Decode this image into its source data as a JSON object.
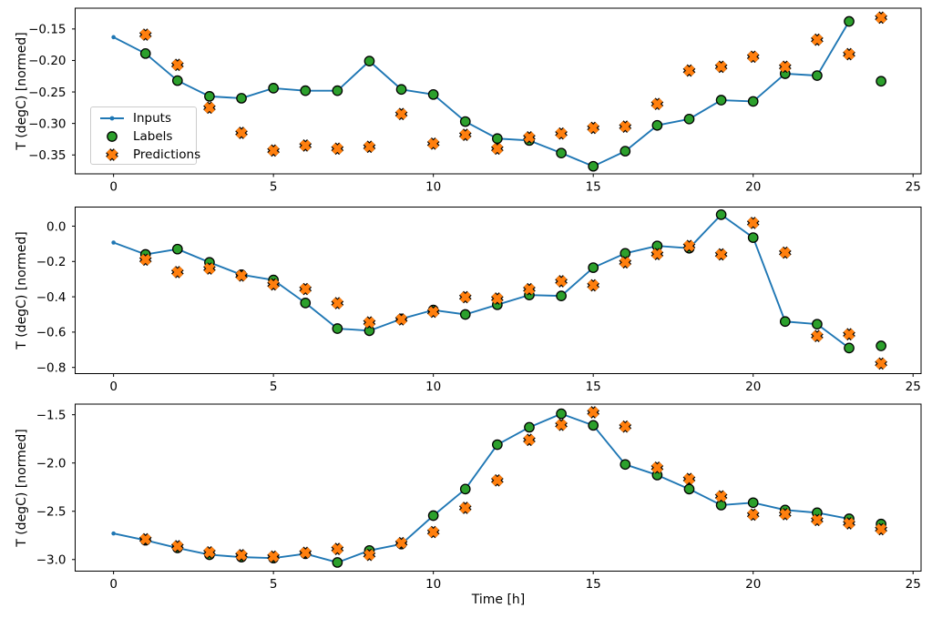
{
  "figure": {
    "background": "#ffffff"
  },
  "colors": {
    "inputs_line": "#1f77b4",
    "labels_marker": "#2ca02c",
    "predictions_marker": "#ff7f0e",
    "marker_edge": "#000000",
    "axes_edge": "#000000",
    "text": "#000000",
    "legend_border": "#cccccc"
  },
  "legend": {
    "items": [
      {
        "label": "Inputs",
        "icon": "line-with-dot-icon"
      },
      {
        "label": "Labels",
        "icon": "green-circle-icon"
      },
      {
        "label": "Predictions",
        "icon": "orange-x-icon"
      }
    ]
  },
  "chart_data": [
    {
      "type": "line",
      "title": "",
      "xlabel": "",
      "ylabel": "T (degC) [normed]",
      "grid": false,
      "legend_position": "upper-left-inset",
      "xlim": [
        -1.2,
        25.25
      ],
      "ylim": [
        -0.38,
        -0.117
      ],
      "xticks": {
        "values": [
          0,
          5,
          10,
          15,
          20,
          25
        ],
        "labels": [
          "0",
          "5",
          "10",
          "15",
          "20",
          "25"
        ]
      },
      "yticks": {
        "values": [
          -0.15,
          -0.2,
          -0.25,
          -0.3,
          -0.35
        ],
        "labels": [
          "−0.15",
          "−0.20",
          "−0.25",
          "−0.30",
          "−0.35"
        ]
      },
      "series": [
        {
          "name": "Inputs",
          "marker": "dot-line",
          "x": [
            0,
            1,
            2,
            3,
            4,
            5,
            6,
            7,
            8,
            9,
            10,
            11,
            12,
            13,
            14,
            15,
            16,
            17,
            18,
            19,
            20,
            21,
            22,
            23
          ],
          "values": [
            -0.163,
            -0.189,
            -0.232,
            -0.257,
            -0.26,
            -0.244,
            -0.248,
            -0.248,
            -0.201,
            -0.246,
            -0.254,
            -0.297,
            -0.324,
            -0.327,
            -0.347,
            -0.368,
            -0.344,
            -0.303,
            -0.293,
            -0.263,
            -0.265,
            -0.221,
            -0.224,
            -0.138
          ]
        },
        {
          "name": "Labels",
          "marker": "circle",
          "x": [
            1,
            2,
            3,
            4,
            5,
            6,
            7,
            8,
            9,
            10,
            11,
            12,
            13,
            14,
            15,
            16,
            17,
            18,
            19,
            20,
            21,
            22,
            23,
            24
          ],
          "values": [
            -0.189,
            -0.232,
            -0.257,
            -0.26,
            -0.244,
            -0.248,
            -0.248,
            -0.201,
            -0.246,
            -0.254,
            -0.297,
            -0.324,
            -0.327,
            -0.347,
            -0.368,
            -0.344,
            -0.303,
            -0.293,
            -0.263,
            -0.265,
            -0.221,
            -0.224,
            -0.138,
            -0.233
          ]
        },
        {
          "name": "Predictions",
          "marker": "X",
          "x": [
            1,
            2,
            3,
            4,
            5,
            6,
            7,
            8,
            9,
            10,
            11,
            12,
            13,
            14,
            15,
            16,
            17,
            18,
            19,
            20,
            21,
            22,
            23,
            24
          ],
          "values": [
            -0.159,
            -0.207,
            -0.275,
            -0.315,
            -0.343,
            -0.335,
            -0.34,
            -0.337,
            -0.285,
            -0.332,
            -0.318,
            -0.34,
            -0.322,
            -0.316,
            -0.307,
            -0.305,
            -0.269,
            -0.216,
            -0.21,
            -0.194,
            -0.21,
            -0.167,
            -0.19,
            -0.132
          ]
        }
      ]
    },
    {
      "type": "line",
      "title": "",
      "xlabel": "",
      "ylabel": "T (degC) [normed]",
      "grid": false,
      "legend_position": "none",
      "xlim": [
        -1.2,
        25.25
      ],
      "ylim": [
        -0.835,
        0.108
      ],
      "xticks": {
        "values": [
          0,
          5,
          10,
          15,
          20,
          25
        ],
        "labels": [
          "0",
          "5",
          "10",
          "15",
          "20",
          "25"
        ]
      },
      "yticks": {
        "values": [
          0.0,
          -0.2,
          -0.4,
          -0.6,
          -0.8
        ],
        "labels": [
          "0.0",
          "−0.2",
          "−0.4",
          "−0.6",
          "−0.8"
        ]
      },
      "series": [
        {
          "name": "Inputs",
          "marker": "dot-line",
          "x": [
            0,
            1,
            2,
            3,
            4,
            5,
            6,
            7,
            8,
            9,
            10,
            11,
            12,
            13,
            14,
            15,
            16,
            17,
            18,
            19,
            20,
            21,
            22,
            23
          ],
          "values": [
            -0.093,
            -0.16,
            -0.13,
            -0.205,
            -0.275,
            -0.305,
            -0.435,
            -0.58,
            -0.592,
            -0.525,
            -0.475,
            -0.5,
            -0.445,
            -0.39,
            -0.395,
            -0.235,
            -0.154,
            -0.112,
            -0.125,
            0.065,
            -0.065,
            -0.54,
            -0.555,
            -0.69
          ]
        },
        {
          "name": "Labels",
          "marker": "circle",
          "x": [
            1,
            2,
            3,
            4,
            5,
            6,
            7,
            8,
            9,
            10,
            11,
            12,
            13,
            14,
            15,
            16,
            17,
            18,
            19,
            20,
            21,
            22,
            23,
            24
          ],
          "values": [
            -0.16,
            -0.13,
            -0.205,
            -0.275,
            -0.305,
            -0.435,
            -0.58,
            -0.592,
            -0.525,
            -0.475,
            -0.5,
            -0.445,
            -0.39,
            -0.395,
            -0.235,
            -0.154,
            -0.112,
            -0.125,
            0.065,
            -0.065,
            -0.54,
            -0.555,
            -0.69,
            -0.678
          ]
        },
        {
          "name": "Predictions",
          "marker": "X",
          "x": [
            1,
            2,
            3,
            4,
            5,
            6,
            7,
            8,
            9,
            10,
            11,
            12,
            13,
            14,
            15,
            16,
            17,
            18,
            19,
            20,
            21,
            22,
            23,
            24
          ],
          "values": [
            -0.19,
            -0.26,
            -0.24,
            -0.28,
            -0.33,
            -0.356,
            -0.436,
            -0.545,
            -0.528,
            -0.485,
            -0.402,
            -0.41,
            -0.357,
            -0.312,
            -0.335,
            -0.205,
            -0.158,
            -0.112,
            -0.16,
            0.018,
            -0.15,
            -0.622,
            -0.612,
            -0.778
          ]
        }
      ]
    },
    {
      "type": "line",
      "title": "",
      "xlabel": "Time [h]",
      "ylabel": "T (degC) [normed]",
      "grid": false,
      "legend_position": "none",
      "xlim": [
        -1.2,
        25.25
      ],
      "ylim": [
        -3.12,
        -1.39
      ],
      "xticks": {
        "values": [
          0,
          5,
          10,
          15,
          20,
          25
        ],
        "labels": [
          "0",
          "5",
          "10",
          "15",
          "20",
          "25"
        ]
      },
      "yticks": {
        "values": [
          -1.5,
          -2.0,
          -2.5,
          -3.0
        ],
        "labels": [
          "−1.5",
          "−2.0",
          "−2.5",
          "−3.0"
        ]
      },
      "series": [
        {
          "name": "Inputs",
          "marker": "dot-line",
          "x": [
            0,
            1,
            2,
            3,
            4,
            5,
            6,
            7,
            8,
            9,
            10,
            11,
            12,
            13,
            14,
            15,
            16,
            17,
            18,
            19,
            20,
            21,
            22,
            23
          ],
          "values": [
            -2.73,
            -2.8,
            -2.88,
            -2.95,
            -2.975,
            -2.985,
            -2.94,
            -3.03,
            -2.906,
            -2.84,
            -2.545,
            -2.27,
            -1.81,
            -1.63,
            -1.49,
            -1.61,
            -2.015,
            -2.125,
            -2.27,
            -2.436,
            -2.411,
            -2.487,
            -2.515,
            -2.578
          ]
        },
        {
          "name": "Labels",
          "marker": "circle",
          "x": [
            1,
            2,
            3,
            4,
            5,
            6,
            7,
            8,
            9,
            10,
            11,
            12,
            13,
            14,
            15,
            16,
            17,
            18,
            19,
            20,
            21,
            22,
            23,
            24
          ],
          "values": [
            -2.8,
            -2.88,
            -2.95,
            -2.975,
            -2.985,
            -2.94,
            -3.03,
            -2.906,
            -2.84,
            -2.545,
            -2.27,
            -1.81,
            -1.63,
            -1.49,
            -1.61,
            -2.015,
            -2.125,
            -2.27,
            -2.436,
            -2.411,
            -2.487,
            -2.515,
            -2.578,
            -2.632
          ]
        },
        {
          "name": "Predictions",
          "marker": "X",
          "x": [
            1,
            2,
            3,
            4,
            5,
            6,
            7,
            8,
            9,
            10,
            11,
            12,
            13,
            14,
            15,
            16,
            17,
            18,
            19,
            20,
            21,
            22,
            23,
            24
          ],
          "values": [
            -2.79,
            -2.862,
            -2.925,
            -2.955,
            -2.97,
            -2.93,
            -2.89,
            -2.952,
            -2.83,
            -2.715,
            -2.465,
            -2.18,
            -1.76,
            -1.605,
            -1.475,
            -1.623,
            -2.048,
            -2.165,
            -2.345,
            -2.535,
            -2.53,
            -2.59,
            -2.625,
            -2.685
          ]
        }
      ]
    }
  ]
}
